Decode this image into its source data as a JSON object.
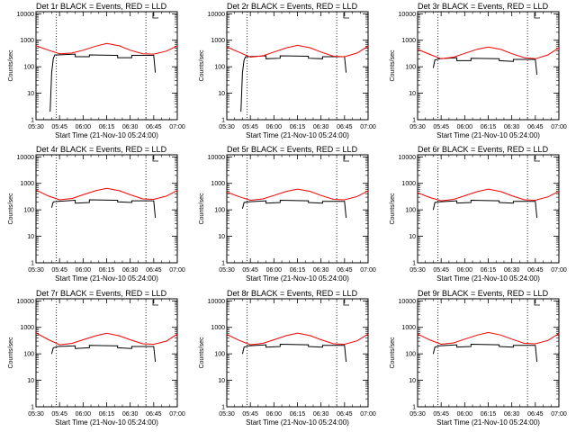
{
  "chart_data": {
    "type": "line",
    "layout": "3x3 grid",
    "x_ticks": [
      "05:30",
      "05:45",
      "06:00",
      "06:15",
      "06:30",
      "06:45",
      "07:00"
    ],
    "y_ticks": [
      "1",
      "10",
      "100",
      "1000",
      "10000"
    ],
    "y_scale": "log",
    "ylim": [
      1,
      12000
    ],
    "xlim": [
      "05:30",
      "07:00"
    ],
    "ylabel": "Counts/sec",
    "xlabel": "Start Time (21-Nov-10 05:24:00)",
    "vlines": [
      "05:43",
      "06:40"
    ],
    "series_colors": {
      "events": "#000000",
      "lld": "#ff0000"
    },
    "panels": [
      {
        "title": "Det 1r BLACK = Events, RED = LLD",
        "lld": {
          "x": [
            "05:30",
            "05:38",
            "05:45",
            "05:53",
            "06:00",
            "06:08",
            "06:15",
            "06:23",
            "06:30",
            "06:38",
            "06:45",
            "06:53",
            "07:00"
          ],
          "y": [
            620,
            420,
            310,
            330,
            420,
            600,
            760,
            620,
            420,
            310,
            300,
            390,
            620
          ]
        },
        "events": {
          "x": [
            "05:39",
            "05:40",
            "05:41",
            "05:42",
            "05:44",
            "05:55",
            "05:55",
            "06:04",
            "06:04",
            "06:22",
            "06:22",
            "06:31",
            "06:31",
            "06:45",
            "06:46"
          ],
          "y": [
            2,
            60,
            200,
            280,
            280,
            300,
            240,
            240,
            280,
            270,
            220,
            220,
            270,
            270,
            60
          ]
        }
      },
      {
        "title": "Det 2r BLACK = Events, RED = LLD",
        "lld": {
          "x": [
            "05:30",
            "05:38",
            "05:45",
            "05:53",
            "06:00",
            "06:08",
            "06:15",
            "06:23",
            "06:30",
            "06:38",
            "06:45",
            "06:53",
            "07:00"
          ],
          "y": [
            560,
            350,
            230,
            260,
            360,
            520,
            640,
            520,
            360,
            250,
            240,
            330,
            600
          ]
        },
        "events": {
          "x": [
            "05:39",
            "05:40",
            "05:41",
            "05:42",
            "05:44",
            "05:55",
            "05:55",
            "06:04",
            "06:04",
            "06:22",
            "06:22",
            "06:31",
            "06:31",
            "06:45",
            "06:46"
          ],
          "y": [
            2,
            60,
            180,
            240,
            240,
            260,
            200,
            210,
            260,
            250,
            210,
            200,
            240,
            240,
            60
          ]
        }
      },
      {
        "title": "Det 3r BLACK = Events, RED = LLD",
        "lld": {
          "x": [
            "05:30",
            "05:38",
            "05:45",
            "05:53",
            "06:00",
            "06:08",
            "06:15",
            "06:23",
            "06:30",
            "06:38",
            "06:45",
            "06:53",
            "07:00"
          ],
          "y": [
            450,
            290,
            200,
            230,
            320,
            460,
            560,
            450,
            310,
            220,
            200,
            280,
            520
          ]
        },
        "events": {
          "x": [
            "05:40",
            "05:41",
            "05:44",
            "05:55",
            "05:55",
            "06:04",
            "06:04",
            "06:22",
            "06:22",
            "06:31",
            "06:31",
            "06:45",
            "06:46"
          ],
          "y": [
            90,
            180,
            200,
            220,
            170,
            170,
            210,
            200,
            170,
            160,
            190,
            190,
            50
          ]
        }
      },
      {
        "title": "Det 4r BLACK = Events, RED = LLD",
        "lld": {
          "x": [
            "05:30",
            "05:38",
            "05:45",
            "05:53",
            "06:00",
            "06:08",
            "06:15",
            "06:23",
            "06:30",
            "06:38",
            "06:45",
            "06:53",
            "07:00"
          ],
          "y": [
            560,
            330,
            240,
            270,
            370,
            530,
            650,
            530,
            370,
            260,
            250,
            330,
            540
          ]
        },
        "events": {
          "x": [
            "05:40",
            "05:41",
            "05:44",
            "05:55",
            "05:55",
            "06:04",
            "06:04",
            "06:22",
            "06:22",
            "06:31",
            "06:31",
            "06:45",
            "06:46"
          ],
          "y": [
            120,
            200,
            210,
            230,
            180,
            190,
            240,
            230,
            200,
            190,
            220,
            220,
            50
          ]
        }
      },
      {
        "title": "Det 5r BLACK = Events, RED = LLD",
        "lld": {
          "x": [
            "05:30",
            "05:38",
            "05:45",
            "05:53",
            "06:00",
            "06:08",
            "06:15",
            "06:23",
            "06:30",
            "06:38",
            "06:45",
            "06:53",
            "07:00"
          ],
          "y": [
            470,
            310,
            230,
            260,
            350,
            500,
            610,
            500,
            350,
            250,
            240,
            320,
            520
          ]
        },
        "events": {
          "x": [
            "05:40",
            "05:41",
            "05:44",
            "05:55",
            "05:55",
            "06:04",
            "06:04",
            "06:22",
            "06:22",
            "06:31",
            "06:31",
            "06:45",
            "06:46"
          ],
          "y": [
            110,
            190,
            200,
            220,
            180,
            190,
            230,
            220,
            190,
            180,
            210,
            210,
            50
          ]
        }
      },
      {
        "title": "Det 6r BLACK = Events, RED = LLD",
        "lld": {
          "x": [
            "05:30",
            "05:38",
            "05:45",
            "05:53",
            "06:00",
            "06:08",
            "06:15",
            "06:23",
            "06:30",
            "06:38",
            "06:45",
            "06:53",
            "07:00"
          ],
          "y": [
            440,
            290,
            220,
            250,
            340,
            490,
            610,
            490,
            340,
            240,
            230,
            310,
            500
          ]
        },
        "events": {
          "x": [
            "05:40",
            "05:41",
            "05:44",
            "05:55",
            "05:55",
            "06:04",
            "06:04",
            "06:22",
            "06:22",
            "06:31",
            "06:31",
            "06:45",
            "06:46"
          ],
          "y": [
            100,
            190,
            200,
            220,
            180,
            190,
            230,
            220,
            190,
            180,
            210,
            210,
            50
          ]
        }
      },
      {
        "title": "Det 7r BLACK = Events, RED = LLD",
        "lld": {
          "x": [
            "05:30",
            "05:38",
            "05:45",
            "05:53",
            "06:00",
            "06:08",
            "06:15",
            "06:23",
            "06:30",
            "06:38",
            "06:45",
            "06:53",
            "07:00"
          ],
          "y": [
            620,
            340,
            220,
            250,
            340,
            480,
            600,
            480,
            340,
            240,
            230,
            300,
            560
          ]
        },
        "events": {
          "x": [
            "05:40",
            "05:41",
            "05:44",
            "05:55",
            "05:55",
            "06:04",
            "06:04",
            "06:22",
            "06:22",
            "06:31",
            "06:31",
            "06:45",
            "06:46"
          ],
          "y": [
            100,
            170,
            190,
            200,
            160,
            170,
            210,
            200,
            170,
            160,
            190,
            190,
            50
          ]
        }
      },
      {
        "title": "Det 8r BLACK = Events, RED = LLD",
        "lld": {
          "x": [
            "05:30",
            "05:38",
            "05:45",
            "05:53",
            "06:00",
            "06:08",
            "06:15",
            "06:23",
            "06:30",
            "06:38",
            "06:45",
            "06:53",
            "07:00"
          ],
          "y": [
            540,
            320,
            220,
            250,
            340,
            490,
            610,
            490,
            340,
            240,
            230,
            310,
            560
          ]
        },
        "events": {
          "x": [
            "05:40",
            "05:41",
            "05:44",
            "05:55",
            "05:55",
            "06:04",
            "06:04",
            "06:22",
            "06:22",
            "06:31",
            "06:31",
            "06:45",
            "06:46"
          ],
          "y": [
            100,
            180,
            200,
            220,
            180,
            190,
            230,
            220,
            190,
            180,
            210,
            210,
            50
          ]
        }
      },
      {
        "title": "Det 9r BLACK = Events, RED = LLD",
        "lld": {
          "x": [
            "05:30",
            "05:38",
            "05:45",
            "05:53",
            "06:00",
            "06:08",
            "06:15",
            "06:23",
            "06:30",
            "06:38",
            "06:45",
            "06:53",
            "07:00"
          ],
          "y": [
            560,
            330,
            230,
            260,
            360,
            510,
            640,
            510,
            360,
            250,
            240,
            320,
            590
          ]
        },
        "events": {
          "x": [
            "05:40",
            "05:41",
            "05:44",
            "05:55",
            "05:55",
            "06:04",
            "06:04",
            "06:22",
            "06:22",
            "06:31",
            "06:31",
            "06:45",
            "06:46"
          ],
          "y": [
            100,
            180,
            200,
            220,
            180,
            190,
            230,
            220,
            190,
            180,
            210,
            210,
            50
          ]
        }
      }
    ]
  }
}
